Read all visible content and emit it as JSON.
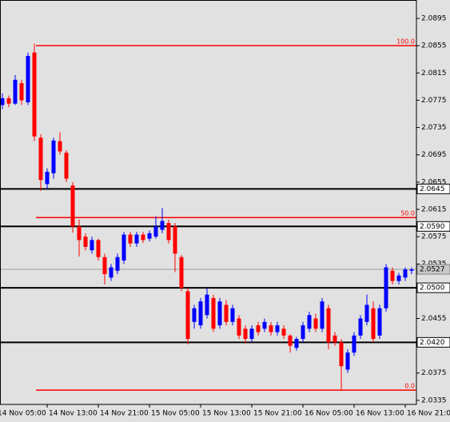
{
  "chart_data": {
    "type": "candlestick",
    "categories": [
      "14 Nov 05:00",
      null,
      null,
      null,
      null,
      null,
      null,
      null,
      "14 Nov 13:00",
      null,
      null,
      null,
      null,
      null,
      null,
      null,
      "14 Nov 21:00",
      null,
      null,
      null,
      null,
      null,
      null,
      null,
      "15 Nov 05:00",
      null,
      null,
      null,
      null,
      null,
      null,
      null,
      "15 Nov 13:00",
      null,
      null,
      null,
      null,
      null,
      null,
      null,
      "15 Nov 21:00",
      null,
      null,
      null,
      null,
      null,
      null,
      null,
      "16 Nov 05:00",
      null,
      null,
      null,
      null,
      null,
      null,
      null,
      "16 Nov 13:00",
      null,
      null,
      null,
      null,
      null,
      null,
      null,
      "16 Nov 21:00",
      null
    ],
    "open": [
      2.0765,
      2.0768,
      2.0778,
      2.077,
      2.08,
      2.0772,
      2.0845,
      2.072,
      2.0652,
      2.0668,
      2.0715,
      2.0698,
      2.065,
      2.059,
      2.0575,
      2.0555,
      2.057,
      2.0545,
      2.0515,
      2.0525,
      2.054,
      2.0578,
      2.0565,
      2.0578,
      2.0572,
      2.0575,
      2.0585,
      2.0595,
      2.059,
      2.0545,
      2.0495,
      2.045,
      2.0445,
      2.046,
      2.0485,
      2.0445,
      2.0475,
      2.045,
      2.0455,
      2.044,
      2.0425,
      2.0445,
      2.044,
      2.0445,
      2.0435,
      2.044,
      2.043,
      2.0412,
      2.0425,
      2.044,
      2.0455,
      2.044,
      2.047,
      2.043,
      2.042,
      2.038,
      2.0405,
      2.043,
      2.045,
      2.047,
      2.043,
      2.047,
      2.0525,
      2.051,
      2.0515,
      2.0525
    ],
    "high": [
      2.078,
      2.0785,
      2.0782,
      2.0812,
      2.0805,
      2.0845,
      2.0858,
      2.0725,
      2.0675,
      2.072,
      2.0728,
      2.0702,
      2.0655,
      2.06,
      2.058,
      2.0575,
      2.0572,
      2.055,
      2.0535,
      2.055,
      2.0582,
      2.0582,
      2.0582,
      2.0582,
      2.0584,
      2.0605,
      2.0617,
      2.06,
      2.0595,
      2.0548,
      2.05,
      2.0475,
      2.0485,
      2.05,
      2.049,
      2.0485,
      2.0482,
      2.0475,
      2.046,
      2.0445,
      2.0445,
      2.045,
      2.0455,
      2.045,
      2.045,
      2.0445,
      2.0432,
      2.0428,
      2.045,
      2.0465,
      2.0462,
      2.0485,
      2.0475,
      2.0435,
      2.0425,
      2.041,
      2.0435,
      2.046,
      2.049,
      2.048,
      2.0475,
      2.0535,
      2.053,
      2.0522,
      2.053,
      2.053
    ],
    "low": [
      2.076,
      2.0762,
      2.0765,
      2.0768,
      2.0768,
      2.0768,
      2.0715,
      2.0642,
      2.0645,
      2.066,
      2.0695,
      2.0655,
      2.0581,
      2.0546,
      2.0555,
      2.055,
      2.054,
      2.0505,
      2.051,
      2.052,
      2.0535,
      2.056,
      2.056,
      2.0566,
      2.0568,
      2.0572,
      2.058,
      2.0565,
      2.0523,
      2.0495,
      2.0417,
      2.044,
      2.044,
      2.0455,
      2.0435,
      2.044,
      2.0445,
      2.0445,
      2.0425,
      2.0418,
      2.042,
      2.043,
      2.0435,
      2.043,
      2.043,
      2.0425,
      2.0405,
      2.0408,
      2.042,
      2.0435,
      2.0435,
      2.0435,
      2.041,
      2.0415,
      2.035,
      2.0375,
      2.04,
      2.0425,
      2.0445,
      2.042,
      2.0425,
      2.0465,
      2.0505,
      2.0505,
      2.051,
      2.052
    ],
    "close": [
      2.0772,
      2.0778,
      2.077,
      2.0805,
      2.0775,
      2.084,
      2.0722,
      2.0658,
      2.067,
      2.0716,
      2.07,
      2.066,
      2.059,
      2.057,
      2.056,
      2.057,
      2.0545,
      2.052,
      2.053,
      2.0545,
      2.0578,
      2.0565,
      2.0578,
      2.057,
      2.058,
      2.059,
      2.0598,
      2.057,
      2.055,
      2.05,
      2.0425,
      2.047,
      2.048,
      2.049,
      2.044,
      2.048,
      2.045,
      2.047,
      2.043,
      2.0425,
      2.044,
      2.0435,
      2.045,
      2.0435,
      2.0445,
      2.043,
      2.0415,
      2.0425,
      2.0445,
      2.046,
      2.044,
      2.048,
      2.042,
      2.042,
      2.0385,
      2.0405,
      2.043,
      2.0455,
      2.0475,
      2.0425,
      2.047,
      2.053,
      2.051,
      2.0518,
      2.0527,
      2.0527
    ],
    "up_color": "#0000ff",
    "down_color": "#ff0000",
    "ylim": [
      2.0329,
      2.0922
    ],
    "yticks": [
      2.0335,
      2.0375,
      2.0455,
      2.0535,
      2.0575,
      2.0615,
      2.0655,
      2.0695,
      2.0735,
      2.0775,
      2.0815,
      2.0855,
      2.0895
    ],
    "levels": [
      {
        "value": 2.0645,
        "label": "2.0645"
      },
      {
        "value": 2.059,
        "label": "2.0590"
      },
      {
        "value": 2.05,
        "label": "2.0500"
      },
      {
        "value": 2.042,
        "label": "2.0420"
      }
    ],
    "level_color": "#000000",
    "fib_levels": [
      {
        "value": 2.0855,
        "label": "100.0"
      },
      {
        "value": 2.0603,
        "label": "50.0"
      },
      {
        "value": 2.035,
        "label": "0.0"
      }
    ],
    "fib_color": "#ff0000",
    "current_price": 2.0527
  }
}
